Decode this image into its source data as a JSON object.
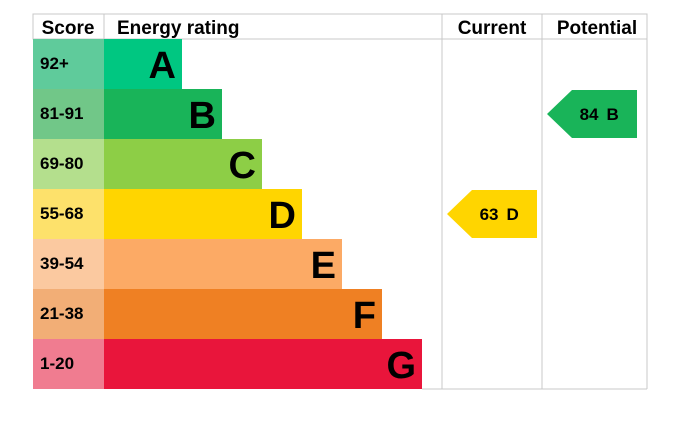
{
  "chart_data": {
    "type": "bar",
    "headers": {
      "score": "Score",
      "rating": "Energy rating",
      "current": "Current",
      "potential": "Potential"
    },
    "bands": [
      {
        "letter": "A",
        "score": "92+",
        "color": "#00c781",
        "score_color": "#5fcb9b"
      },
      {
        "letter": "B",
        "score": "81-91",
        "color": "#19b459",
        "score_color": "#71c788"
      },
      {
        "letter": "C",
        "score": "69-80",
        "color": "#8dce46",
        "score_color": "#b4df8d"
      },
      {
        "letter": "D",
        "score": "55-68",
        "color": "#ffd500",
        "score_color": "#fde16b"
      },
      {
        "letter": "E",
        "score": "39-54",
        "color": "#fcaa65",
        "score_color": "#fbc9a0"
      },
      {
        "letter": "F",
        "score": "21-38",
        "color": "#ef8023",
        "score_color": "#f2ae76"
      },
      {
        "letter": "G",
        "score": "1-20",
        "color": "#e9153b",
        "score_color": "#f07c90"
      }
    ],
    "current": {
      "value": 63,
      "band": "D",
      "color": "#ffd500"
    },
    "potential": {
      "value": 84,
      "band": "B",
      "color": "#19b459"
    }
  }
}
